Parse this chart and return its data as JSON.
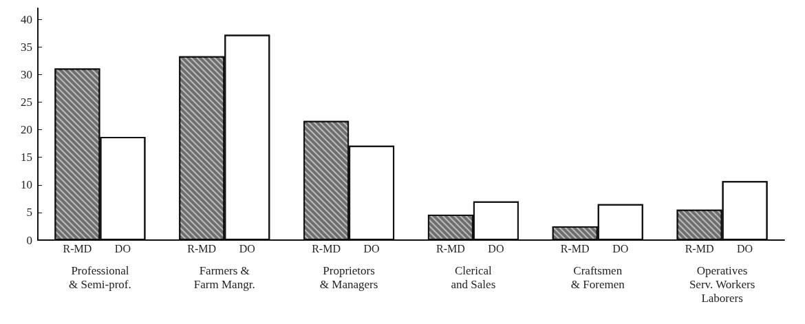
{
  "chart_data": {
    "type": "bar",
    "categories": [
      "Professional\n& Semi-prof.",
      "Farmers &\nFarm Mangr.",
      "Proprietors\n& Managers",
      "Clerical\nand Sales",
      "Craftsmen\n& Foremen",
      "Operatives\nServ. Workers\nLaborers"
    ],
    "series": [
      {
        "name": "R-MD",
        "color": "#6e6e6e",
        "values": [
          31.1,
          33.3,
          21.6,
          4.6,
          2.5,
          5.5
        ]
      },
      {
        "name": "DO",
        "color": "#ffffff",
        "values": [
          18.7,
          37.2,
          17.1,
          7.0,
          6.5,
          10.7
        ]
      }
    ],
    "ylim": [
      0,
      42
    ],
    "yticks": [
      0,
      5,
      10,
      15,
      20,
      25,
      30,
      35,
      40
    ],
    "grid": false,
    "legend": false
  }
}
